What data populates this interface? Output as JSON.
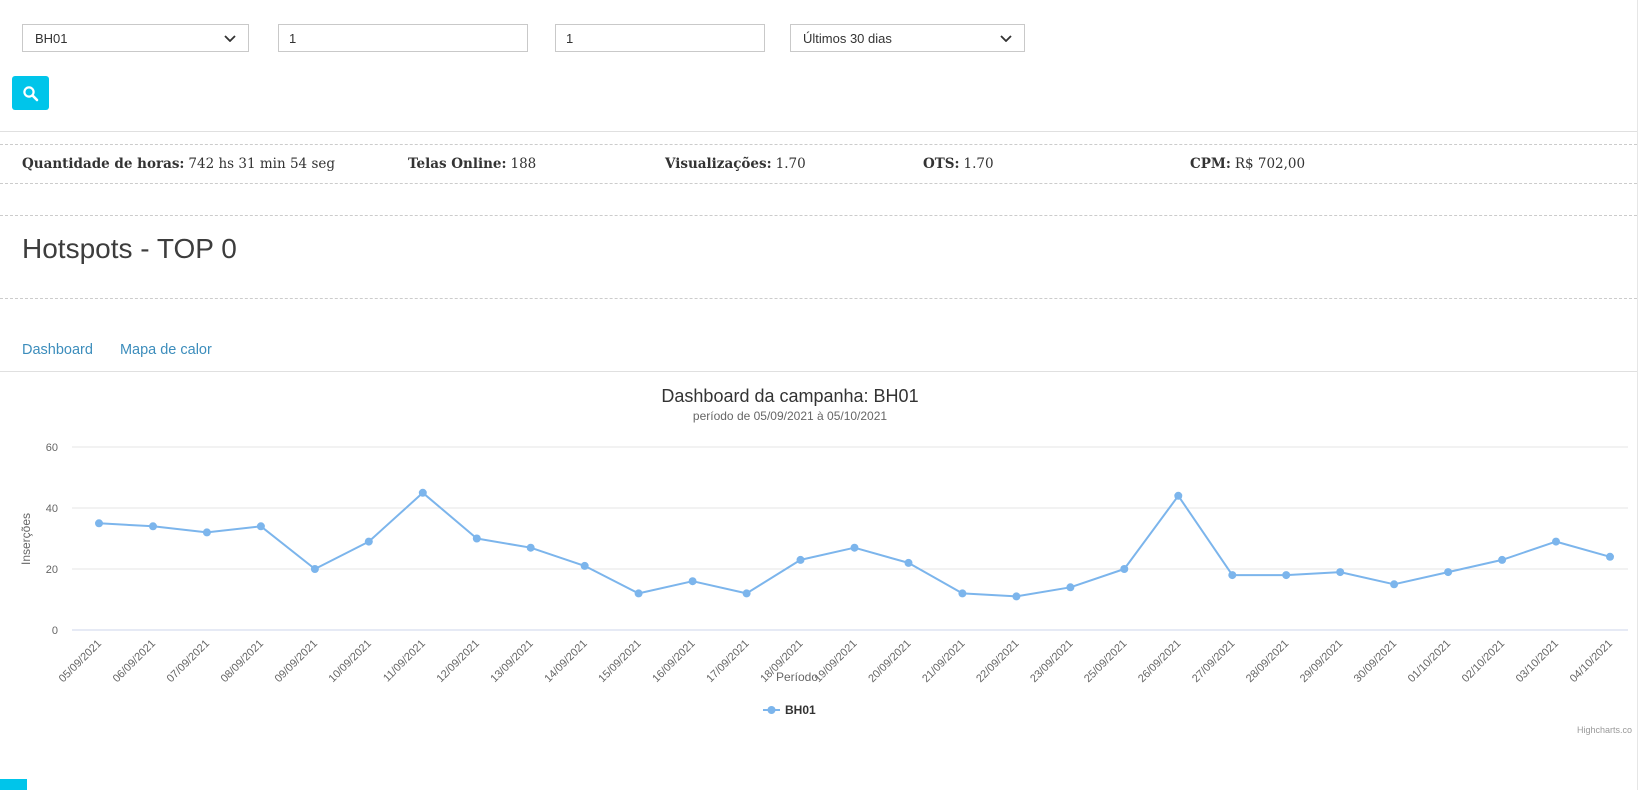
{
  "filters": {
    "campaign_select": {
      "value": "BH01"
    },
    "screens_input": {
      "value": "1"
    },
    "group_input": {
      "value": "1"
    },
    "period_select": {
      "value": "Últimos 30 dias"
    }
  },
  "stats": {
    "items": [
      {
        "label": "Quantidade de horas:",
        "value": "742 hs 31 min 54 seg"
      },
      {
        "label": "Telas Online:",
        "value": "188"
      },
      {
        "label": "Visualizações:",
        "value": "1.70"
      },
      {
        "label": "OTS:",
        "value": "1.70"
      },
      {
        "label": "CPM:",
        "value": "R$ 702,00"
      }
    ]
  },
  "section": {
    "title": "Hotspots - TOP 0"
  },
  "tabs": [
    {
      "label": "Dashboard"
    },
    {
      "label": "Mapa de calor"
    }
  ],
  "chart_data": {
    "type": "line",
    "title": "Dashboard da campanha: BH01",
    "subtitle": "período de 05/09/2021 à 05/10/2021",
    "xlabel": "Período",
    "ylabel": "Inserções",
    "ylim": [
      0,
      60
    ],
    "yticks": [
      0,
      20,
      40,
      60
    ],
    "grid": true,
    "legend_position": "bottom",
    "credit": "Highcharts.co",
    "categories": [
      "05/09/2021",
      "06/09/2021",
      "07/09/2021",
      "08/09/2021",
      "09/09/2021",
      "10/09/2021",
      "11/09/2021",
      "12/09/2021",
      "13/09/2021",
      "14/09/2021",
      "15/09/2021",
      "16/09/2021",
      "17/09/2021",
      "18/09/2021",
      "19/09/2021",
      "20/09/2021",
      "21/09/2021",
      "22/09/2021",
      "23/09/2021",
      "25/09/2021",
      "26/09/2021",
      "27/09/2021",
      "28/09/2021",
      "29/09/2021",
      "30/09/2021",
      "01/10/2021",
      "02/10/2021",
      "03/10/2021",
      "04/10/2021"
    ],
    "series": [
      {
        "name": "BH01",
        "color": "#7cb5ec",
        "values": [
          35,
          34,
          32,
          34,
          20,
          29,
          45,
          30,
          27,
          21,
          12,
          16,
          12,
          23,
          27,
          22,
          12,
          11,
          14,
          20,
          44,
          18,
          18,
          19,
          15,
          19,
          23,
          29,
          24
        ]
      }
    ]
  },
  "colors": {
    "accent_cyan": "#00c5ea",
    "tab_blue": "#3c8dbc",
    "series_blue": "#7cb5ec",
    "grid_line": "#e6e6e6",
    "axis_line": "#ccd6eb"
  }
}
